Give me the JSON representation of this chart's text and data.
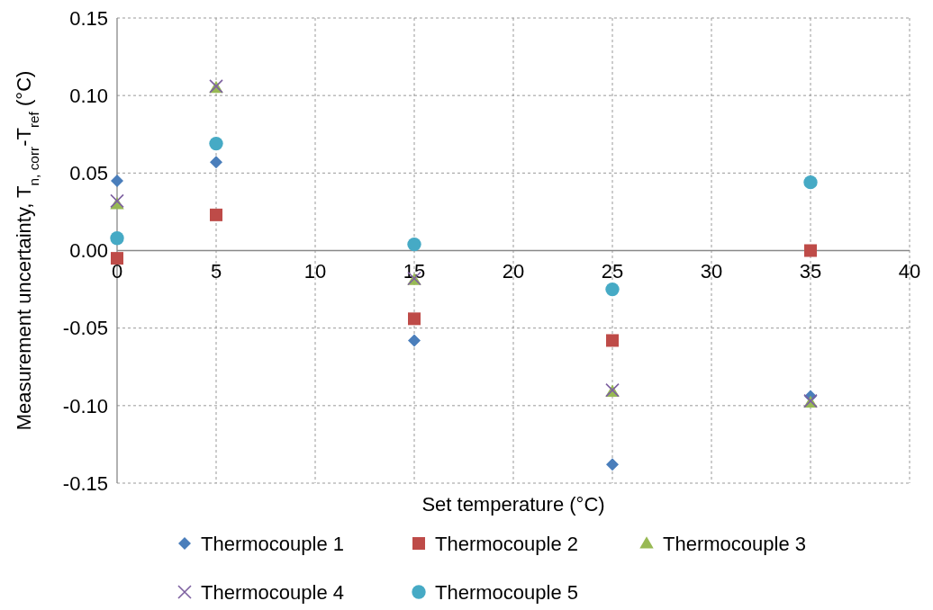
{
  "chart_data": {
    "type": "scatter",
    "xlabel": "Set temperature (°C)",
    "ylabel": "Measurement uncertainty, T$_{n, corr}$-T$_{ref}$ (°C)",
    "x": [
      0,
      5,
      15,
      25,
      35
    ],
    "series": [
      {
        "name": "Thermocouple 1",
        "color": "#4a7ebb",
        "marker": "diamond",
        "values": [
          0.045,
          0.057,
          -0.058,
          -0.138,
          -0.094
        ]
      },
      {
        "name": "Thermocouple 2",
        "color": "#be4b48",
        "marker": "square",
        "values": [
          -0.005,
          0.023,
          -0.044,
          -0.058,
          0.0
        ]
      },
      {
        "name": "Thermocouple 3",
        "color": "#98b954",
        "marker": "triangle",
        "values": [
          0.03,
          0.105,
          -0.019,
          -0.091,
          -0.098
        ]
      },
      {
        "name": "Thermocouple 4",
        "color": "#7d60a0",
        "marker": "cross",
        "values": [
          0.032,
          0.106,
          -0.018,
          -0.09,
          -0.097
        ]
      },
      {
        "name": "Thermocouple 5",
        "color": "#46aac5",
        "marker": "circle",
        "values": [
          0.008,
          0.069,
          0.004,
          -0.025,
          0.044
        ]
      }
    ],
    "xlim": [
      0,
      40
    ],
    "xticks": [
      0,
      5,
      10,
      15,
      20,
      25,
      30,
      35,
      40
    ],
    "ylim": [
      -0.15,
      0.15
    ],
    "yticks": [
      -0.15,
      {
        "value": -0.1,
        "label": "-0.10"
      },
      -0.05,
      {
        "value": 0,
        "label": "0.00"
      },
      0.05,
      {
        "value": 0.1,
        "label": "0.10"
      },
      0.15
    ],
    "grid": true,
    "legend": "bottom"
  }
}
